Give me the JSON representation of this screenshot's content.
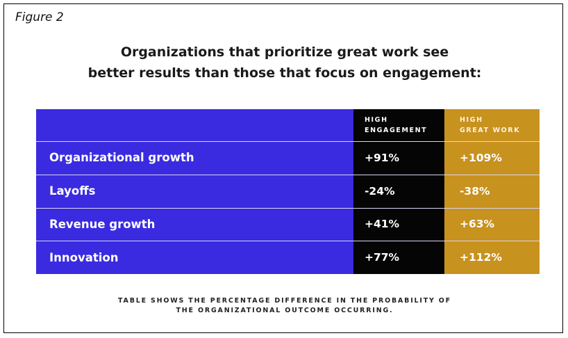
{
  "figure_label": "Figure 2",
  "title_lines": [
    "Organizations that prioritize great work see",
    "better results than those that focus on engagement:"
  ],
  "chart_data": {
    "type": "table",
    "columns": [
      "",
      "HIGH ENGAGEMENT",
      "HIGH GREAT WORK"
    ],
    "header_lines": {
      "engagement": [
        "HIGH",
        "ENGAGEMENT"
      ],
      "great_work": [
        "HIGH",
        "GREAT WORK"
      ]
    },
    "rows": [
      {
        "label": "Organizational growth",
        "engagement": "+91%",
        "great_work": "+109%"
      },
      {
        "label": "Layoffs",
        "engagement": "-24%",
        "great_work": "-38%"
      },
      {
        "label": "Revenue growth",
        "engagement": "+41%",
        "great_work": "+63%"
      },
      {
        "label": "Innovation",
        "engagement": "+77%",
        "great_work": "+112%"
      }
    ],
    "values": {
      "engagement": [
        91,
        -24,
        41,
        77
      ],
      "great_work": [
        109,
        -38,
        63,
        112
      ]
    }
  },
  "colors": {
    "label_column": "#3a2be0",
    "engagement_column": "#050505",
    "great_work_column": "#c8921f"
  },
  "footnote_lines": [
    "TABLE SHOWS THE PERCENTAGE DIFFERENCE IN THE PROBABILITY OF",
    "THE ORGANIZATIONAL OUTCOME OCCURRING."
  ]
}
